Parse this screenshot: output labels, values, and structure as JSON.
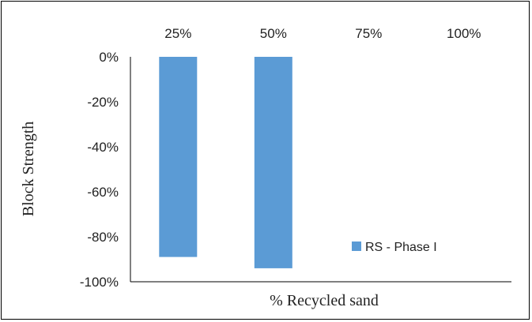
{
  "chart_data": {
    "type": "bar",
    "title": "",
    "categories": [
      "25%",
      "50%",
      "75%",
      "100%"
    ],
    "series": [
      {
        "name": "RS - Phase I",
        "values": [
          -89,
          -94,
          null,
          null
        ]
      }
    ],
    "xlabel": "% Recycled sand",
    "ylabel": "Block  Strength",
    "ylim": [
      -100,
      0
    ],
    "yticks": [
      "0%",
      "-20%",
      "-40%",
      "-60%",
      "-80%",
      "-100%"
    ],
    "x_axis_position": "top",
    "grid": false,
    "legend_position": "bottom-right",
    "colors": {
      "bar": "#5B9BD5",
      "axis": "#000000"
    }
  }
}
